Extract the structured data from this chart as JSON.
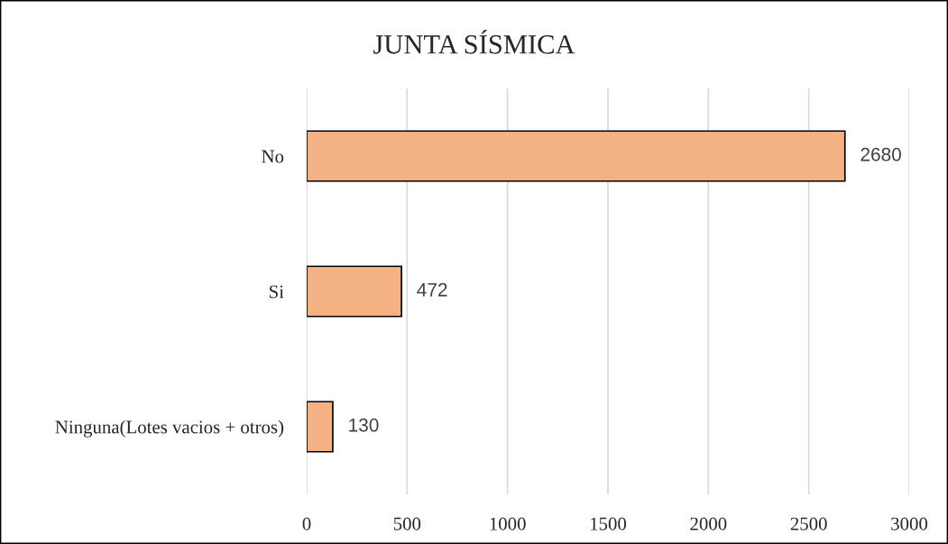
{
  "chart_data": {
    "type": "bar",
    "orientation": "horizontal",
    "title": "JUNTA SÍSMICA",
    "categories": [
      "No",
      "Si",
      "Ninguna(Lotes vacios + otros)"
    ],
    "values": [
      2680,
      472,
      130
    ],
    "color": "#f4b183",
    "xlim": [
      0,
      3000
    ],
    "xticks": [
      0,
      500,
      1000,
      1500,
      2000,
      2500,
      3000
    ],
    "grid": "x",
    "data_labels": true
  }
}
